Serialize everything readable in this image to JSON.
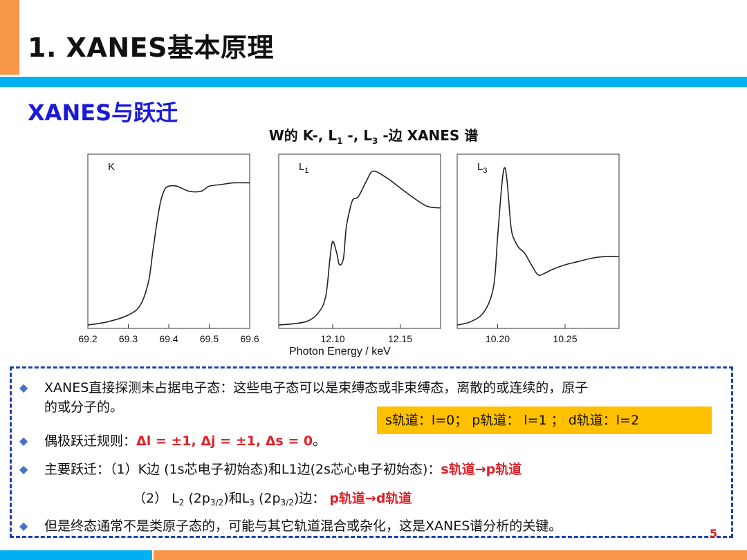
{
  "header": {
    "title": "1. XANES基本原理"
  },
  "section": {
    "title": "XANES与跃迁"
  },
  "figure": {
    "caption_prefix": "W的 K-, L",
    "caption_sub1": "1",
    "caption_mid": " -, L",
    "caption_sub3": "3",
    "caption_suffix": " -边 XANES 谱",
    "x_axis_title": "Photon Energy / keV"
  },
  "chart_data": [
    {
      "type": "line",
      "panel_label": "K",
      "xlim": [
        69.2,
        69.6
      ],
      "ticks": [
        "69.2",
        "69.3",
        "69.4",
        "69.5",
        "69.6"
      ],
      "x": [
        69.2,
        69.25,
        69.3,
        69.33,
        69.35,
        69.36,
        69.37,
        69.38,
        69.39,
        69.4,
        69.42,
        69.45,
        69.48,
        69.5,
        69.53,
        69.56,
        69.6
      ],
      "y": [
        0.02,
        0.04,
        0.08,
        0.14,
        0.28,
        0.45,
        0.62,
        0.76,
        0.83,
        0.85,
        0.85,
        0.82,
        0.82,
        0.85,
        0.86,
        0.87,
        0.87
      ]
    },
    {
      "type": "line",
      "panel_label": "L1",
      "xlim": [
        12.06,
        12.18
      ],
      "ticks": [
        "12.10",
        "12.15"
      ],
      "x": [
        12.06,
        12.08,
        12.09,
        12.095,
        12.098,
        12.1,
        12.103,
        12.105,
        12.108,
        12.11,
        12.113,
        12.115,
        12.118,
        12.12,
        12.125,
        12.13,
        12.14,
        12.15,
        12.16,
        12.17,
        12.18
      ],
      "y": [
        0.02,
        0.04,
        0.1,
        0.2,
        0.42,
        0.52,
        0.45,
        0.38,
        0.42,
        0.6,
        0.72,
        0.77,
        0.78,
        0.8,
        0.88,
        0.94,
        0.9,
        0.84,
        0.78,
        0.73,
        0.72
      ]
    },
    {
      "type": "line",
      "panel_label": "L3",
      "xlim": [
        10.17,
        10.29
      ],
      "ticks": [
        "10.20",
        "10.25"
      ],
      "x": [
        10.17,
        10.18,
        10.19,
        10.197,
        10.2,
        10.203,
        10.205,
        10.207,
        10.21,
        10.213,
        10.216,
        10.22,
        10.225,
        10.23,
        10.235,
        10.24,
        10.25,
        10.26,
        10.27,
        10.28,
        10.29
      ],
      "y": [
        0.02,
        0.04,
        0.1,
        0.25,
        0.55,
        0.85,
        0.96,
        0.88,
        0.6,
        0.52,
        0.48,
        0.45,
        0.38,
        0.32,
        0.33,
        0.35,
        0.38,
        0.4,
        0.42,
        0.43,
        0.43
      ]
    }
  ],
  "bullets": {
    "b1_line1": "XANES直接探测未占据电子态：这些电子态可以是束缚态或非束缚态，离散的或连续的，原子",
    "b1_line2": "的或分子的。",
    "b2_prefix": "偶极跃迁规则：",
    "b2_rule": "Δl = ±1, Δj = ±1, Δs = 0",
    "b2_suffix": "。",
    "b3_prefix": "主要跃迁：（1）K边 (1s芯电子初始态)和L1边(2s芯心电子初始态)：",
    "b3_red": "s轨道→p轨道",
    "b3b_prefix": "（2） L",
    "b3b_sub1": "2",
    "b3b_mid1": " (2p",
    "b3b_sub2": "3/2",
    "b3b_mid2": ")和L",
    "b3b_sub3": "3",
    "b3b_mid3": " (2p",
    "b3b_sub4": "3/2",
    "b3b_mid4": ")边：",
    "b3b_red": "p轨道→d轨道",
    "b4": "但是终态通常不是类原子态的，可能与其它轨道混合或杂化，这是XANES谱分析的关键。"
  },
  "note": {
    "text": "s轨道：l=0； p轨道： l=1 ； d轨道：l=2"
  },
  "page_number": "5"
}
